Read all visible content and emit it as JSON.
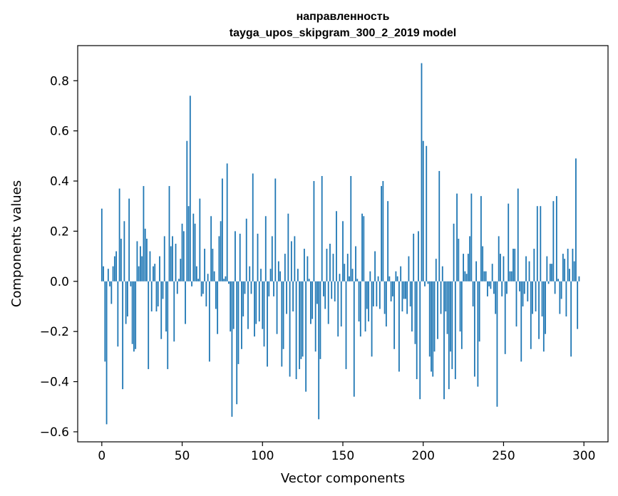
{
  "chart_data": {
    "type": "bar",
    "title_line1": "направленность",
    "title_line2": "tayga_upos_skipgram_300_2_2019 model",
    "xlabel": "Vector components",
    "ylabel": "Components values",
    "xlim": [
      -15,
      315
    ],
    "ylim": [
      -0.64,
      0.94
    ],
    "xticks": [
      0,
      50,
      100,
      150,
      200,
      250,
      300
    ],
    "xtick_labels": [
      "0",
      "50",
      "100",
      "150",
      "200",
      "250",
      "300"
    ],
    "yticks": [
      -0.6,
      -0.4,
      -0.2,
      0.0,
      0.2,
      0.4,
      0.6,
      0.8
    ],
    "ytick_labels": [
      "−0.6",
      "−0.4",
      "−0.2",
      "0.0",
      "0.2",
      "0.4",
      "0.6",
      "0.8"
    ],
    "bar_color": "#1f77b4",
    "grid": false,
    "values": [
      0.29,
      0.06,
      -0.32,
      -0.57,
      0.05,
      -0.02,
      -0.09,
      0.06,
      0.1,
      0.12,
      -0.26,
      0.37,
      0.17,
      -0.43,
      0.24,
      -0.17,
      -0.14,
      0.33,
      -0.02,
      -0.25,
      -0.28,
      -0.27,
      0.16,
      0.06,
      0.14,
      0.1,
      0.38,
      0.21,
      0.17,
      -0.35,
      0.12,
      -0.12,
      0.06,
      0.07,
      -0.12,
      -0.1,
      0.1,
      -0.23,
      -0.07,
      0.18,
      -0.2,
      -0.35,
      0.38,
      0.14,
      0.18,
      -0.24,
      0.15,
      -0.05,
      0.01,
      0.09,
      0.23,
      0.2,
      -0.17,
      0.56,
      0.3,
      0.74,
      -0.02,
      0.27,
      0.23,
      0.06,
      0.01,
      0.33,
      -0.06,
      -0.05,
      0.13,
      -0.1,
      0.03,
      -0.32,
      0.26,
      0.13,
      0.04,
      -0.11,
      -0.21,
      0.18,
      0.24,
      0.41,
      0.01,
      0.02,
      0.47,
      -0.01,
      -0.2,
      -0.54,
      -0.19,
      0.2,
      -0.49,
      -0.33,
      0.19,
      -0.27,
      -0.14,
      -0.05,
      0.25,
      -0.19,
      0.06,
      -0.05,
      0.43,
      -0.22,
      -0.17,
      0.19,
      -0.16,
      0.05,
      -0.19,
      -0.26,
      0.26,
      -0.34,
      -0.06,
      0.05,
      0.18,
      -0.06,
      0.41,
      -0.21,
      0.08,
      0.04,
      -0.34,
      -0.27,
      0.11,
      -0.13,
      0.27,
      -0.38,
      0.16,
      -0.12,
      0.18,
      -0.39,
      0.05,
      -0.35,
      -0.31,
      -0.3,
      0.13,
      -0.44,
      0.1,
      0.01,
      -0.17,
      -0.15,
      0.4,
      -0.28,
      -0.09,
      -0.55,
      -0.31,
      0.42,
      -0.06,
      -0.11,
      0.13,
      -0.17,
      0.15,
      -0.07,
      0.11,
      -0.08,
      0.28,
      -0.22,
      0.03,
      -0.18,
      0.24,
      0.07,
      -0.35,
      0.11,
      0.02,
      0.42,
      0.05,
      -0.46,
      0.14,
      0.01,
      -0.16,
      -0.22,
      0.27,
      0.26,
      -0.2,
      -0.11,
      -0.16,
      0.04,
      -0.3,
      -0.1,
      0.12,
      -0.1,
      0.02,
      -0.11,
      0.38,
      0.4,
      -0.13,
      -0.18,
      0.32,
      0.02,
      -0.08,
      -0.06,
      -0.27,
      0.04,
      0.02,
      -0.36,
      0.06,
      -0.12,
      -0.07,
      -0.07,
      -0.13,
      0.1,
      -0.1,
      -0.2,
      0.19,
      -0.25,
      -0.39,
      0.2,
      -0.47,
      0.87,
      0.56,
      -0.02,
      0.54,
      -0.01,
      -0.3,
      -0.36,
      -0.38,
      -0.28,
      0.09,
      -0.23,
      0.44,
      -0.13,
      0.06,
      -0.47,
      -0.12,
      -0.21,
      -0.43,
      -0.28,
      -0.35,
      0.23,
      -0.39,
      0.35,
      0.17,
      -0.2,
      -0.27,
      0.11,
      0.04,
      0.03,
      0.11,
      0.18,
      0.35,
      -0.1,
      -0.38,
      0.08,
      -0.42,
      -0.24,
      0.34,
      0.14,
      0.04,
      0.04,
      -0.06,
      -0.02,
      -0.03,
      0.07,
      -0.05,
      -0.13,
      -0.5,
      0.18,
      0.11,
      -0.06,
      0.1,
      -0.29,
      -0.05,
      0.31,
      0.04,
      0.04,
      0.13,
      0.13,
      -0.18,
      0.37,
      -0.04,
      -0.32,
      -0.1,
      -0.05,
      0.1,
      -0.08,
      0.08,
      -0.27,
      -0.13,
      0.13,
      -0.12,
      0.3,
      -0.23,
      0.3,
      -0.14,
      -0.28,
      -0.21,
      0.1,
      -0.01,
      0.07,
      0.07,
      0.32,
      -0.05,
      0.34,
      0.01,
      -0.13,
      -0.07,
      0.11,
      0.09,
      -0.14,
      0.13,
      0.05,
      -0.3,
      0.13,
      0.08,
      0.49,
      -0.19,
      0.02
    ]
  }
}
